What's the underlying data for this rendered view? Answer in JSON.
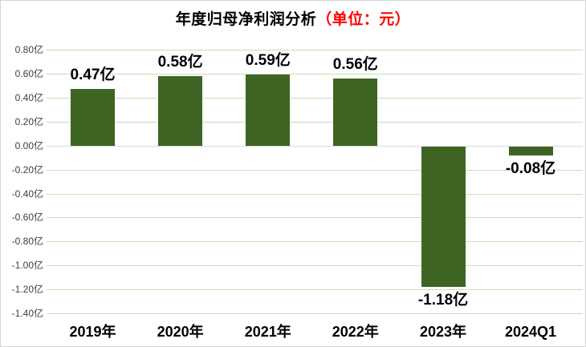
{
  "title": {
    "main": "年度归母净利润分析",
    "unit": "（单位：元）"
  },
  "chart_data": {
    "type": "bar",
    "title": "年度归母净利润分析（单位：元）",
    "categories": [
      "2019年",
      "2020年",
      "2021年",
      "2022年",
      "2023年",
      "2024Q1"
    ],
    "values": [
      0.47,
      0.58,
      0.59,
      0.56,
      -1.18,
      -0.08
    ],
    "value_labels": [
      "0.47亿",
      "0.58亿",
      "0.59亿",
      "0.56亿",
      "-1.18亿",
      "-0.08亿"
    ],
    "xlabel": "",
    "ylabel": "",
    "ylim": [
      -1.4,
      0.8
    ],
    "ytick_step": 0.2,
    "ytick_labels": [
      "0.80亿",
      "0.60亿",
      "0.40亿",
      "0.20亿",
      "0.00亿",
      "-0.20亿",
      "-0.40亿",
      "-0.60亿",
      "-0.80亿",
      "-1.00亿",
      "-1.20亿",
      "-1.40亿"
    ],
    "grid": true,
    "legend": false
  },
  "styles": {
    "bar_color": "#3e6423",
    "gridline_color": "#c6e0b4",
    "zero_line_color": "#d9d9d9",
    "unit_color": "#ff0000",
    "border_color": "#d4d4d4",
    "ytick_color": "#3f3f3f"
  }
}
